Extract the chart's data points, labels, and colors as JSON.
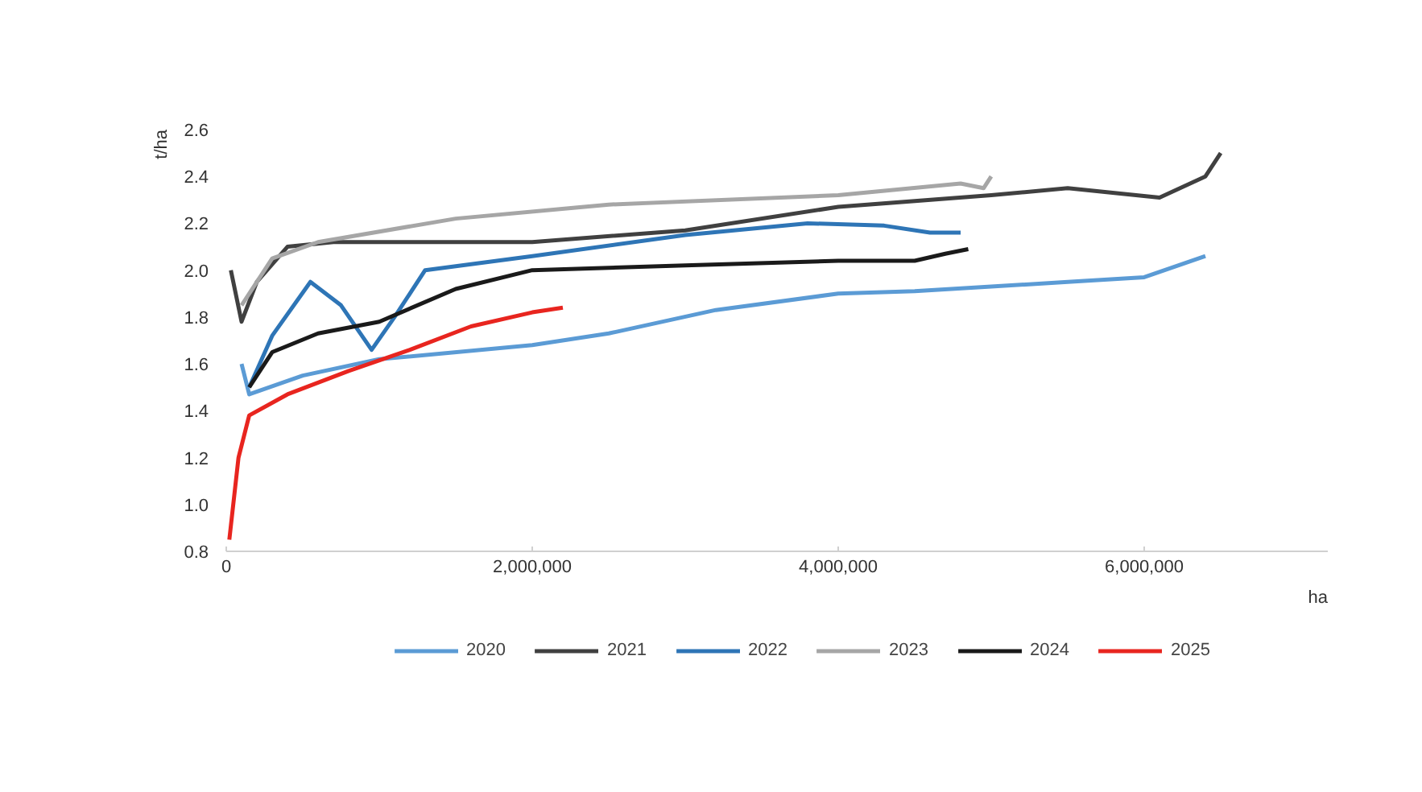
{
  "chart_data": {
    "type": "line",
    "xlabel": "ha",
    "ylabel": "t/ha",
    "xlim": [
      0,
      7200000
    ],
    "ylim": [
      0.8,
      2.6
    ],
    "xticks": [
      {
        "value": 0,
        "label": "0"
      },
      {
        "value": 2000000,
        "label": "2,000,000"
      },
      {
        "value": 4000000,
        "label": "4,000,000"
      },
      {
        "value": 6000000,
        "label": "6,000,000"
      }
    ],
    "yticks": [
      {
        "value": 0.8,
        "label": "0.8"
      },
      {
        "value": 1.0,
        "label": "1.0"
      },
      {
        "value": 1.2,
        "label": "1.2"
      },
      {
        "value": 1.4,
        "label": "1.4"
      },
      {
        "value": 1.6,
        "label": "1.6"
      },
      {
        "value": 1.8,
        "label": "1.8"
      },
      {
        "value": 2.0,
        "label": "2.0"
      },
      {
        "value": 2.2,
        "label": "2.2"
      },
      {
        "value": 2.4,
        "label": "2.4"
      },
      {
        "value": 2.6,
        "label": "2.6"
      }
    ],
    "grid": false,
    "legend": "bottom",
    "marker": "none",
    "line_style": "solid",
    "series": [
      {
        "name": "2020",
        "color": "#5b9bd5",
        "x": [
          100000,
          150000,
          500000,
          1000000,
          2000000,
          2500000,
          3200000,
          4000000,
          4500000,
          5000000,
          5500000,
          6000000,
          6400000
        ],
        "values": [
          1.6,
          1.47,
          1.55,
          1.62,
          1.68,
          1.73,
          1.83,
          1.9,
          1.91,
          1.93,
          1.95,
          1.97,
          2.06
        ]
      },
      {
        "name": "2021",
        "color": "#404040",
        "x": [
          30000,
          100000,
          200000,
          400000,
          700000,
          2000000,
          3000000,
          4000000,
          5000000,
          5500000,
          6100000,
          6400000,
          6500000
        ],
        "values": [
          2.0,
          1.78,
          1.95,
          2.1,
          2.12,
          2.12,
          2.17,
          2.27,
          2.32,
          2.35,
          2.31,
          2.4,
          2.5
        ]
      },
      {
        "name": "2022",
        "color": "#2e75b6",
        "x": [
          150000,
          300000,
          550000,
          750000,
          950000,
          1100000,
          1300000,
          2000000,
          3000000,
          3800000,
          4300000,
          4600000,
          4800000
        ],
        "values": [
          1.5,
          1.72,
          1.95,
          1.85,
          1.66,
          1.8,
          2.0,
          2.06,
          2.15,
          2.2,
          2.19,
          2.16,
          2.16
        ]
      },
      {
        "name": "2023",
        "color": "#a6a6a6",
        "x": [
          100000,
          300000,
          600000,
          1500000,
          2500000,
          4000000,
          4800000,
          4950000,
          5000000
        ],
        "values": [
          1.85,
          2.05,
          2.12,
          2.22,
          2.28,
          2.32,
          2.37,
          2.35,
          2.4
        ]
      },
      {
        "name": "2024",
        "color": "#1a1a1a",
        "x": [
          150000,
          300000,
          600000,
          1000000,
          1500000,
          2000000,
          3000000,
          4000000,
          4500000,
          4700000,
          4850000
        ],
        "values": [
          1.5,
          1.65,
          1.73,
          1.78,
          1.92,
          2.0,
          2.02,
          2.04,
          2.04,
          2.07,
          2.09
        ]
      },
      {
        "name": "2025",
        "color": "#e8251f",
        "x": [
          20000,
          80000,
          150000,
          400000,
          800000,
          1200000,
          1600000,
          2000000,
          2200000
        ],
        "values": [
          0.85,
          1.2,
          1.38,
          1.47,
          1.57,
          1.66,
          1.76,
          1.82,
          1.84
        ]
      }
    ]
  }
}
